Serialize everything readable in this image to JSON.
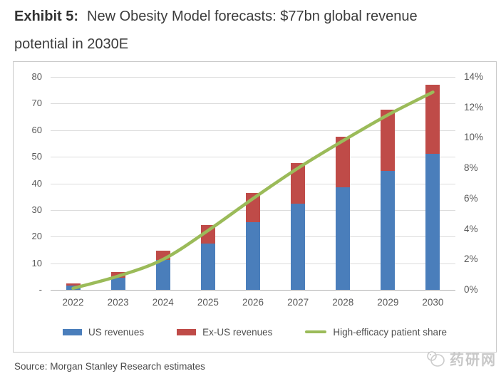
{
  "title": {
    "label": "Exhibit 5:",
    "text": "New Obesity Model forecasts: $77bn global revenue potential in 2030E"
  },
  "chart_data": {
    "type": "bar",
    "subtype": "stacked-bars-with-line",
    "categories": [
      "2022",
      "2023",
      "2024",
      "2025",
      "2026",
      "2027",
      "2028",
      "2029",
      "2030"
    ],
    "series": [
      {
        "name": "US revenues",
        "type": "bar",
        "axis": "left",
        "color": "#4a7ebb",
        "values": [
          1.6,
          4.5,
          11.2,
          17.4,
          25.3,
          32.5,
          38.4,
          44.6,
          51.0
        ]
      },
      {
        "name": "Ex-US revenues",
        "type": "bar",
        "axis": "left",
        "color": "#bf4b48",
        "values": [
          0.7,
          2.2,
          3.6,
          6.9,
          11.0,
          15.0,
          19.2,
          23.1,
          26.0
        ]
      },
      {
        "name": "High-efficacy patient share",
        "type": "line",
        "axis": "right",
        "color": "#9bbb59",
        "values": [
          0.1,
          0.9,
          2.0,
          3.9,
          6.0,
          8.0,
          9.8,
          11.5,
          13.0
        ]
      }
    ],
    "left_axis": {
      "min": 0,
      "max": 80,
      "step": 10,
      "tick_labels_top_to_bottom": [
        "80",
        "70",
        "60",
        "50",
        "40",
        "30",
        "20",
        "10",
        "-"
      ],
      "tick_values_top_to_bottom": [
        80,
        70,
        60,
        50,
        40,
        30,
        20,
        10,
        0
      ]
    },
    "right_axis": {
      "min": 0,
      "max": 14,
      "step": 2,
      "tick_labels_top_to_bottom": [
        "14%",
        "12%",
        "10%",
        "8%",
        "6%",
        "4%",
        "2%",
        "0%"
      ],
      "tick_values_top_to_bottom": [
        14,
        12,
        10,
        8,
        6,
        4,
        2,
        0
      ]
    },
    "grid": "horizontal",
    "legend_position": "bottom",
    "totals_by_year": [
      2.3,
      6.7,
      14.8,
      24.3,
      36.3,
      47.5,
      57.6,
      67.7,
      77.0
    ]
  },
  "source": {
    "text": "Source: Morgan Stanley Research estimates"
  },
  "watermark": {
    "text": "药研网"
  }
}
